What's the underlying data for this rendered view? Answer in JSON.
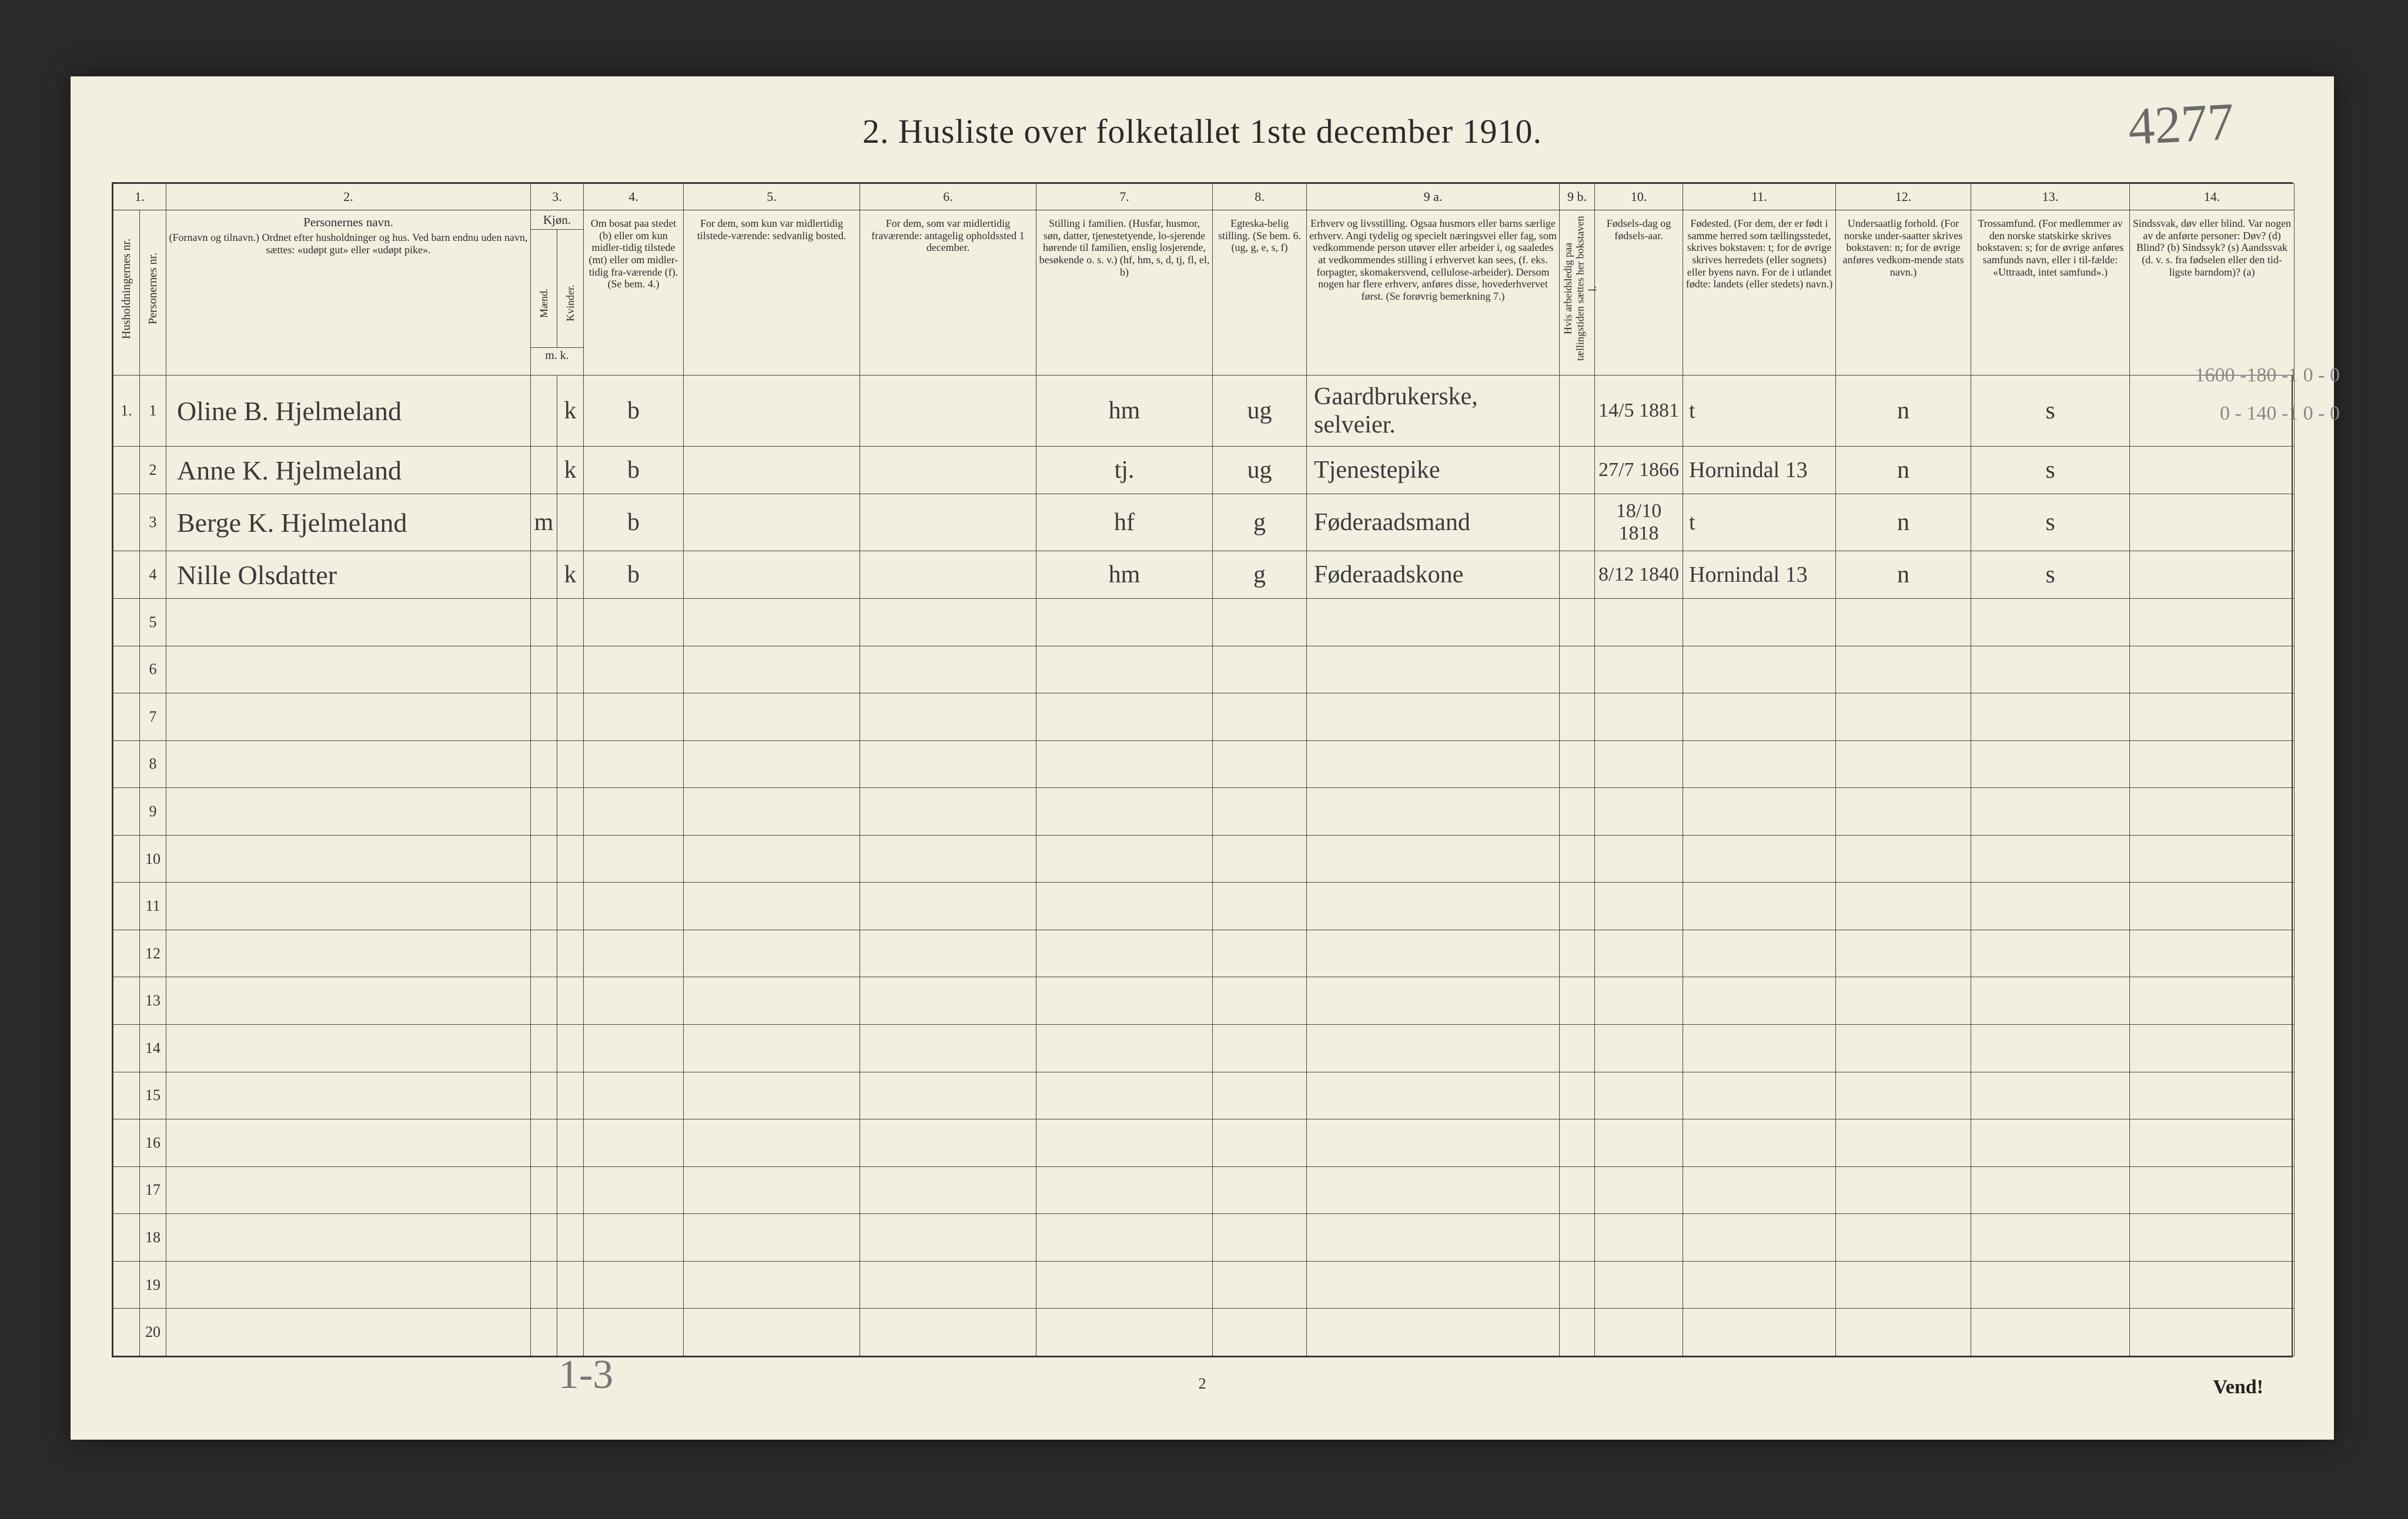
{
  "page": {
    "title": "2.  Husliste over folketallet 1ste december 1910.",
    "pencil_top_right": "4277",
    "footer_pencil_left": "1-3",
    "footer_center": "2",
    "footer_right": "Vend!",
    "background_color": "#f2efe0",
    "ink_color": "#2b2b2b",
    "pencil_color": "#777777"
  },
  "columns": {
    "numbers": [
      "1.",
      "2.",
      "3.",
      "4.",
      "5.",
      "6.",
      "7.",
      "8.",
      "9 a.",
      "9 b.",
      "10.",
      "11.",
      "12.",
      "13.",
      "14."
    ],
    "h1": "Husholdningernes nr.",
    "h1b": "Personernes nr.",
    "h2": "Personernes navn.",
    "h2_sub": "(Fornavn og tilnavn.) Ordnet efter husholdninger og hus. Ved barn endnu uden navn, sættes: «udøpt gut» eller «udøpt pike».",
    "h3": "Kjøn.",
    "h3a": "Mænd.",
    "h3b": "Kvinder.",
    "h3_foot": "m.  k.",
    "h4": "Om bosat paa stedet (b) eller om kun midler-tidig tilstede (mt) eller om midler-tidig fra-værende (f). (Se bem. 4.)",
    "h5": "For dem, som kun var midlertidig tilstede-værende: sedvanlig bosted.",
    "h6": "For dem, som var midlertidig fraværende: antagelig opholdssted 1 december.",
    "h7": "Stilling i familien. (Husfar, husmor, søn, datter, tjenestetyende, lo-sjerende hørende til familien, enslig losjerende, besøkende o. s. v.) (hf, hm, s, d, tj, fl, el, b)",
    "h8": "Egteska-belig stilling. (Se bem. 6. (ug, g, e, s, f)",
    "h9a": "Erhverv og livsstilling. Ogsaa husmors eller barns særlige erhverv. Angi tydelig og specielt næringsvei eller fag, som vedkommende person utøver eller arbeider i, og saaledes at vedkommendes stilling i erhvervet kan sees, (f. eks. forpagter, skomakersvend, cellulose-arbeider). Dersom nogen har flere erhverv, anføres disse, hovederhvervet først. (Se forøvrig bemerkning 7.)",
    "h9b": "Hvis arbeidsledig paa tællingstiden sættes her bokstaven l.",
    "h10": "Fødsels-dag og fødsels-aar.",
    "h11": "Fødested. (For dem, der er født i samme herred som tællingsstedet, skrives bokstaven: t; for de øvrige skrives herredets (eller sognets) eller byens navn. For de i utlandet fødte: landets (eller stedets) navn.)",
    "h12": "Undersaatlig forhold. (For norske under-saatter skrives bokstaven: n; for de øvrige anføres vedkom-mende stats navn.)",
    "h13": "Trossamfund. (For medlemmer av den norske statskirke skrives bokstaven: s; for de øvrige anføres samfunds navn, eller i til-fælde: «Uttraadt, intet samfund».)",
    "h14": "Sindssvak, døv eller blind. Var nogen av de anførte personer: Døv? (d)  Blind? (b)  Sindssyk? (s)  Aandssvak (d. v. s. fra fødselen eller den tid-ligste barndom)? (a)"
  },
  "rows": [
    {
      "hh": "1.",
      "pn": "1",
      "name": "Oline B. Hjelmeland",
      "sex_m": "",
      "sex_k": "k",
      "bosat": "b",
      "col5": "",
      "col6": "",
      "famstill": "hm",
      "egte": "ug",
      "erhverv": "Gaardbrukerske, selveier.",
      "col9b": "",
      "fodselsdato": "14/5 1881",
      "fodested": "t",
      "undersaat": "n",
      "tros": "s",
      "col14": "",
      "margin": "1600 -180 -1    0 - 0"
    },
    {
      "hh": "",
      "pn": "2",
      "name": "Anne K. Hjelmeland",
      "sex_m": "",
      "sex_k": "k",
      "bosat": "b",
      "col5": "",
      "col6": "",
      "famstill": "tj.",
      "egte": "ug",
      "erhverv": "Tjenestepike",
      "col9b": "",
      "fodselsdato": "27/7 1866",
      "fodested": "Hornindal 13",
      "undersaat": "n",
      "tros": "s",
      "col14": "",
      "margin": "0 - 140 -1    0 - 0"
    },
    {
      "hh": "",
      "pn": "3",
      "name": "Berge K. Hjelmeland",
      "sex_m": "m",
      "sex_k": "",
      "bosat": "b",
      "col5": "",
      "col6": "",
      "famstill": "hf",
      "egte": "g",
      "erhverv": "Føderaadsmand",
      "col9b": "",
      "fodselsdato": "18/10 1818",
      "fodested": "t",
      "undersaat": "n",
      "tros": "s",
      "col14": "",
      "margin": ""
    },
    {
      "hh": "",
      "pn": "4",
      "name": "Nille Olsdatter",
      "sex_m": "",
      "sex_k": "k",
      "bosat": "b",
      "col5": "",
      "col6": "",
      "famstill": "hm",
      "egte": "g",
      "erhverv": "Føderaadskone",
      "col9b": "",
      "fodselsdato": "8/12 1840",
      "fodested": "Hornindal 13",
      "undersaat": "n",
      "tros": "s",
      "col14": "",
      "margin": ""
    }
  ],
  "empty_row_numbers": [
    "5",
    "6",
    "7",
    "8",
    "9",
    "10",
    "11",
    "12",
    "13",
    "14",
    "15",
    "16",
    "17",
    "18",
    "19",
    "20"
  ],
  "style": {
    "title_fontsize_pt": 44,
    "header_fontsize_pt": 16,
    "body_fontsize_pt": 26,
    "cursive_family": "Brush Script MT"
  }
}
